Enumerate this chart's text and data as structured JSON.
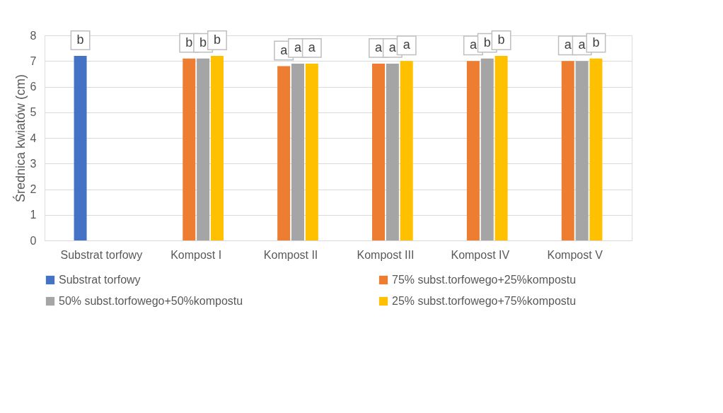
{
  "chart_data": {
    "type": "bar",
    "ylabel": "Średnica kwiatów (cm)",
    "categories": [
      "Substrat torfowy",
      "Kompost I",
      "Kompost II",
      "Kompost III",
      "Kompost IV",
      "Kompost V"
    ],
    "series": [
      {
        "name": "Substrat torfowy",
        "color": "#4472c4",
        "values": [
          7.2,
          null,
          null,
          null,
          null,
          null
        ],
        "value_labels": [
          "b",
          null,
          null,
          null,
          null,
          null
        ]
      },
      {
        "name": "75% subst.torfowego+25%kompostu",
        "color": "#ed7d31",
        "values": [
          null,
          7.1,
          6.8,
          6.9,
          7.0,
          7.0
        ],
        "value_labels": [
          null,
          "b",
          "a",
          "a",
          "a",
          "a"
        ]
      },
      {
        "name": "50% subst.torfowego+50%kompostu",
        "color": "#a5a5a5",
        "values": [
          null,
          7.1,
          6.9,
          6.9,
          7.1,
          7.0
        ],
        "value_labels": [
          null,
          "b",
          "a",
          "a",
          "b",
          "a"
        ]
      },
      {
        "name": "25% subst.torfowego+75%kompostu",
        "color": "#ffc000",
        "values": [
          null,
          7.2,
          6.9,
          7.0,
          7.2,
          7.1
        ],
        "value_labels": [
          null,
          "b",
          "a",
          "a",
          "b",
          "b"
        ]
      }
    ],
    "ylim": [
      0,
      8
    ],
    "yticks": [
      0,
      1,
      2,
      3,
      4,
      5,
      6,
      7,
      8
    ],
    "grid": "y",
    "legend": "bottom"
  }
}
